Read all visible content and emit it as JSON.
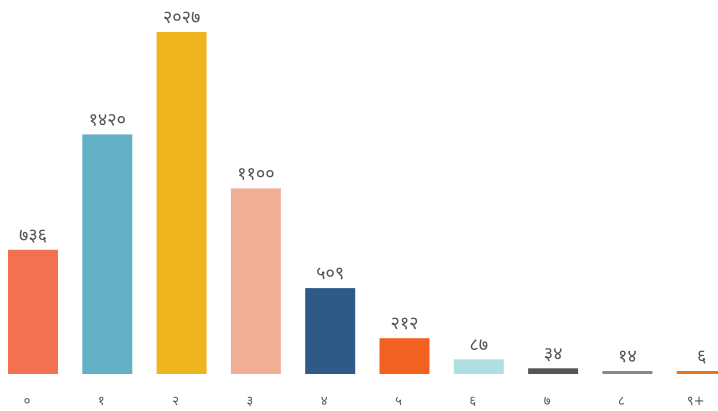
{
  "chart_data": {
    "type": "bar",
    "title": "",
    "xlabel": "",
    "ylabel": "",
    "ylim": [
      0,
      2027
    ],
    "grid": false,
    "legend": "none",
    "categories": [
      "०",
      "१",
      "२",
      "३",
      "४",
      "५",
      "६",
      "७",
      "८",
      "९+"
    ],
    "values": [
      736,
      1420,
      2027,
      1100,
      509,
      212,
      87,
      34,
      14,
      6
    ],
    "value_labels": [
      "७३६",
      "१४२०",
      "२०२७",
      "११००",
      "५०९",
      "२१२",
      "८७",
      "३४",
      "१४",
      "६"
    ],
    "colors": [
      "#f37150",
      "#64b0c4",
      "#eeb51e",
      "#f0ae97",
      "#2e5a88",
      "#f26122",
      "#aee0e1",
      "#555555",
      "#888888",
      "#e8751a"
    ]
  }
}
